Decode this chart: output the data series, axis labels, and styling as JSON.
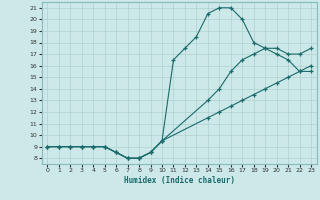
{
  "xlabel": "Humidex (Indice chaleur)",
  "background_color": "#cce8e8",
  "grid_color": "#b0d0d0",
  "line_color": "#1a6b6b",
  "xlim": [
    -0.5,
    23.5
  ],
  "ylim": [
    7.5,
    21.5
  ],
  "xticks": [
    0,
    1,
    2,
    3,
    4,
    5,
    6,
    7,
    8,
    9,
    10,
    11,
    12,
    13,
    14,
    15,
    16,
    17,
    18,
    19,
    20,
    21,
    22,
    23
  ],
  "yticks": [
    8,
    9,
    10,
    11,
    12,
    13,
    14,
    15,
    16,
    17,
    18,
    19,
    20,
    21
  ],
  "line1_x": [
    0,
    1,
    2,
    3,
    4,
    5,
    6,
    7,
    8,
    9,
    10,
    14,
    15,
    16,
    17,
    18,
    19,
    20,
    21,
    22,
    23
  ],
  "line1_y": [
    9,
    9,
    9,
    9,
    9,
    9,
    8.5,
    8,
    8,
    8.5,
    9.5,
    11.5,
    12,
    12.5,
    13,
    13.5,
    14,
    14.5,
    15,
    15.5,
    16
  ],
  "line2_x": [
    0,
    1,
    2,
    3,
    4,
    5,
    6,
    7,
    8,
    9,
    10,
    14,
    15,
    16,
    17,
    18,
    19,
    20,
    21,
    22,
    23
  ],
  "line2_y": [
    9,
    9,
    9,
    9,
    9,
    9,
    8.5,
    8,
    8,
    8.5,
    9.5,
    13,
    14,
    15.5,
    16.5,
    17,
    17.5,
    17.5,
    17,
    17,
    17.5
  ],
  "line3_x": [
    0,
    1,
    2,
    3,
    4,
    5,
    6,
    7,
    8,
    9,
    10,
    11,
    12,
    13,
    14,
    15,
    16,
    17,
    18,
    19,
    20,
    21,
    22,
    23
  ],
  "line3_y": [
    9,
    9,
    9,
    9,
    9,
    9,
    8.5,
    8,
    8,
    8.5,
    9.5,
    16.5,
    17.5,
    18.5,
    20.5,
    21,
    21,
    20,
    18,
    17.5,
    17,
    16.5,
    15.5,
    15.5
  ]
}
